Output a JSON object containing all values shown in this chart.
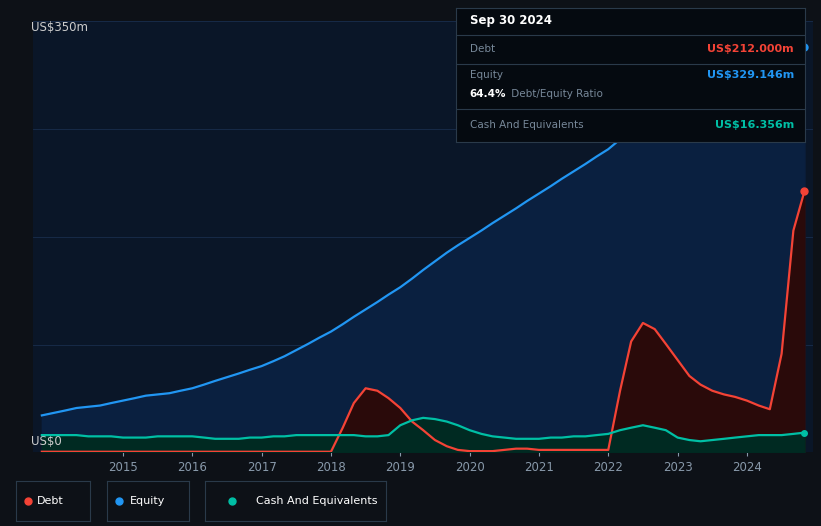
{
  "bg_color": "#0d1117",
  "plot_bg_color": "#0a1628",
  "grid_color": "#1a3050",
  "ylabel_text": "US$350m",
  "y0_text": "US$0",
  "x_ticks": [
    2015,
    2016,
    2017,
    2018,
    2019,
    2020,
    2021,
    2022,
    2023,
    2024
  ],
  "equity_color": "#2196f3",
  "equity_fill": "#0a2040",
  "debt_color": "#f44336",
  "debt_fill": "#2a0a0a",
  "cash_color": "#00bfa5",
  "cash_fill": "#002a22",
  "xlim": [
    2013.7,
    2024.95
  ],
  "ylim": [
    0,
    350
  ],
  "years": [
    2013.83,
    2014.0,
    2014.17,
    2014.33,
    2014.5,
    2014.67,
    2014.83,
    2015.0,
    2015.17,
    2015.33,
    2015.5,
    2015.67,
    2015.83,
    2016.0,
    2016.17,
    2016.33,
    2016.5,
    2016.67,
    2016.83,
    2017.0,
    2017.17,
    2017.33,
    2017.5,
    2017.67,
    2017.83,
    2018.0,
    2018.17,
    2018.33,
    2018.5,
    2018.67,
    2018.83,
    2019.0,
    2019.17,
    2019.33,
    2019.5,
    2019.67,
    2019.83,
    2020.0,
    2020.17,
    2020.33,
    2020.5,
    2020.67,
    2020.83,
    2021.0,
    2021.17,
    2021.33,
    2021.5,
    2021.67,
    2021.83,
    2022.0,
    2022.17,
    2022.33,
    2022.5,
    2022.67,
    2022.83,
    2023.0,
    2023.17,
    2023.33,
    2023.5,
    2023.67,
    2023.83,
    2024.0,
    2024.17,
    2024.33,
    2024.5,
    2024.67,
    2024.83
  ],
  "equity": [
    30,
    32,
    34,
    36,
    37,
    38,
    40,
    42,
    44,
    46,
    47,
    48,
    50,
    52,
    55,
    58,
    61,
    64,
    67,
    70,
    74,
    78,
    83,
    88,
    93,
    98,
    104,
    110,
    116,
    122,
    128,
    134,
    141,
    148,
    155,
    162,
    168,
    174,
    180,
    186,
    192,
    198,
    204,
    210,
    216,
    222,
    228,
    234,
    240,
    246,
    254,
    262,
    270,
    278,
    286,
    294,
    303,
    311,
    318,
    322,
    326,
    328,
    329,
    329.1,
    329.1,
    329.1,
    329.146
  ],
  "debt": [
    0.5,
    0.5,
    0.5,
    0.5,
    0.5,
    0.5,
    0.5,
    0.5,
    0.5,
    0.5,
    0.5,
    0.5,
    0.5,
    0.5,
    0.5,
    0.5,
    0.5,
    0.5,
    0.5,
    0.5,
    0.5,
    0.5,
    0.5,
    0.5,
    0.5,
    0.5,
    20,
    40,
    52,
    50,
    44,
    36,
    25,
    18,
    10,
    5,
    2,
    1,
    1,
    1,
    2,
    3,
    3,
    2,
    2,
    2,
    2,
    2,
    2,
    2,
    50,
    90,
    105,
    100,
    88,
    75,
    62,
    55,
    50,
    47,
    45,
    42,
    38,
    35,
    80,
    180,
    212
  ],
  "cash": [
    14,
    14,
    14,
    14,
    13,
    13,
    13,
    12,
    12,
    12,
    13,
    13,
    13,
    13,
    12,
    11,
    11,
    11,
    12,
    12,
    13,
    13,
    14,
    14,
    14,
    14,
    14,
    14,
    13,
    13,
    14,
    22,
    26,
    28,
    27,
    25,
    22,
    18,
    15,
    13,
    12,
    11,
    11,
    11,
    12,
    12,
    13,
    13,
    14,
    15,
    18,
    20,
    22,
    20,
    18,
    12,
    10,
    9,
    10,
    11,
    12,
    13,
    14,
    14,
    14,
    15,
    16
  ],
  "tooltip_date": "Sep 30 2024",
  "tooltip_debt_label": "Debt",
  "tooltip_debt_value": "US$212.000m",
  "tooltip_equity_label": "Equity",
  "tooltip_equity_value": "US$329.146m",
  "tooltip_ratio": "64.4%",
  "tooltip_ratio_label": " Debt/Equity Ratio",
  "tooltip_cash_label": "Cash And Equivalents",
  "tooltip_cash_value": "US$16.356m",
  "debt_label_color": "#f44336",
  "equity_label_color": "#2196f3",
  "cash_label_color": "#00bfa5",
  "grid_yticks": [
    87.5,
    175.0,
    262.5,
    350.0
  ]
}
